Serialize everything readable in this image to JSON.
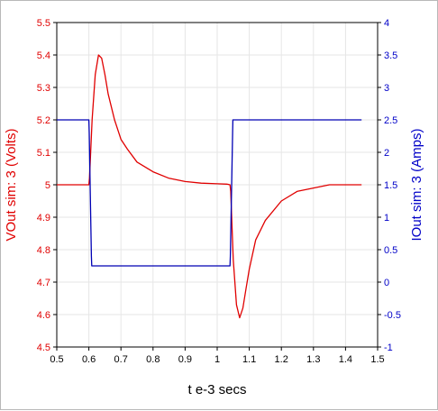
{
  "chart_data": {
    "type": "line",
    "xlabel": "t e-3 secs",
    "ylabel_left": "VOut sim:  3 (Volts)",
    "ylabel_right": "IOut sim:  3 (Amps)",
    "xlim": [
      0.5,
      1.5
    ],
    "ylim_left": [
      4.5,
      5.5
    ],
    "ylim_right": [
      -1,
      4
    ],
    "x_ticks": [
      "0.5",
      "0.6",
      "0.7",
      "0.8",
      "0.9",
      "1",
      "1.1",
      "1.2",
      "1.3",
      "1.4",
      "1.5"
    ],
    "y_left_ticks": [
      "4.5",
      "4.6",
      "4.7",
      "4.8",
      "4.9",
      "5",
      "5.1",
      "5.2",
      "5.3",
      "5.4",
      "5.5"
    ],
    "y_right_ticks": [
      "-1",
      "-0.5",
      "0",
      "0.5",
      "1",
      "1.5",
      "2",
      "2.5",
      "3",
      "3.5",
      "4"
    ],
    "grid": true,
    "colors": {
      "voltage": "#e00000",
      "current": "#0000b4",
      "grid": "#e6e6e6"
    },
    "series": [
      {
        "name": "VOut sim:  3 (Volts)",
        "axis": "left",
        "x": [
          0.5,
          0.55,
          0.6,
          0.602,
          0.61,
          0.62,
          0.63,
          0.64,
          0.65,
          0.66,
          0.68,
          0.7,
          0.72,
          0.75,
          0.8,
          0.85,
          0.9,
          0.95,
          1.0,
          1.03,
          1.04,
          1.042,
          1.05,
          1.06,
          1.07,
          1.08,
          1.09,
          1.1,
          1.12,
          1.15,
          1.2,
          1.25,
          1.3,
          1.35,
          1.4,
          1.45
        ],
        "values": [
          5.0,
          5.0,
          5.0,
          5.02,
          5.2,
          5.34,
          5.4,
          5.39,
          5.34,
          5.28,
          5.2,
          5.14,
          5.11,
          5.07,
          5.04,
          5.02,
          5.01,
          5.005,
          5.003,
          5.002,
          5.0,
          4.98,
          4.77,
          4.63,
          4.59,
          4.62,
          4.68,
          4.74,
          4.83,
          4.89,
          4.95,
          4.98,
          4.99,
          5.0,
          5.0,
          5.0
        ]
      },
      {
        "name": "IOut sim:  3 (Amps)",
        "axis": "right",
        "x": [
          0.5,
          0.6,
          0.601,
          0.608,
          0.609,
          1.04,
          1.041,
          1.048,
          1.049,
          1.45
        ],
        "values": [
          2.5,
          2.5,
          2.3,
          0.4,
          0.25,
          0.25,
          0.4,
          2.3,
          2.5,
          2.5
        ]
      }
    ]
  }
}
